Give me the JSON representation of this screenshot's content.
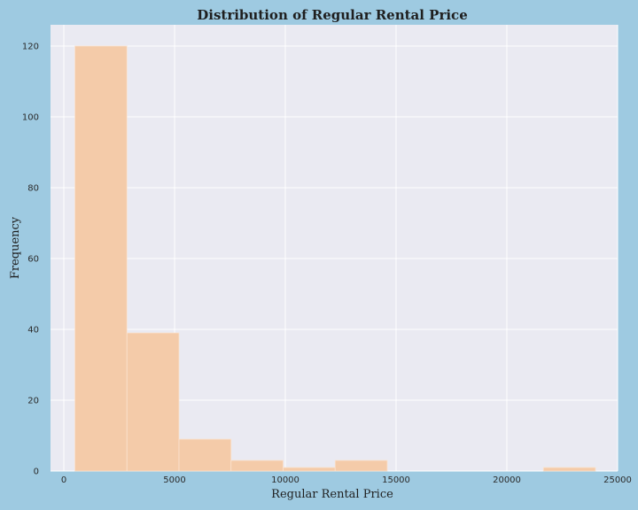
{
  "colors": {
    "page_background": "#9ecae1",
    "plot_background": "#eaeaf2",
    "grid": "#ffffff",
    "bar_fill": "#f4cba9",
    "bar_edge": "#fbe3d0",
    "text": "#1f1f1f"
  },
  "chart_data": {
    "type": "bar",
    "subtype": "histogram",
    "title": "Distribution of Regular Rental Price",
    "xlabel": "Regular Rental Price",
    "ylabel": "Frequency",
    "xlim": [
      -600,
      25000
    ],
    "ylim": [
      0,
      126
    ],
    "xticks": [
      0,
      5000,
      10000,
      15000,
      20000,
      25000
    ],
    "yticks": [
      0,
      20,
      40,
      60,
      80,
      100,
      120
    ],
    "grid": true,
    "legend": "none",
    "bins": [
      {
        "x0": 500,
        "x1": 2850,
        "count": 120
      },
      {
        "x0": 2850,
        "x1": 5200,
        "count": 39
      },
      {
        "x0": 5200,
        "x1": 7550,
        "count": 9
      },
      {
        "x0": 7550,
        "x1": 9900,
        "count": 3
      },
      {
        "x0": 9900,
        "x1": 12250,
        "count": 1
      },
      {
        "x0": 12250,
        "x1": 14600,
        "count": 3
      },
      {
        "x0": 14600,
        "x1": 16950,
        "count": 0
      },
      {
        "x0": 16950,
        "x1": 19300,
        "count": 0
      },
      {
        "x0": 19300,
        "x1": 21650,
        "count": 0
      },
      {
        "x0": 21650,
        "x1": 24000,
        "count": 1
      }
    ]
  }
}
